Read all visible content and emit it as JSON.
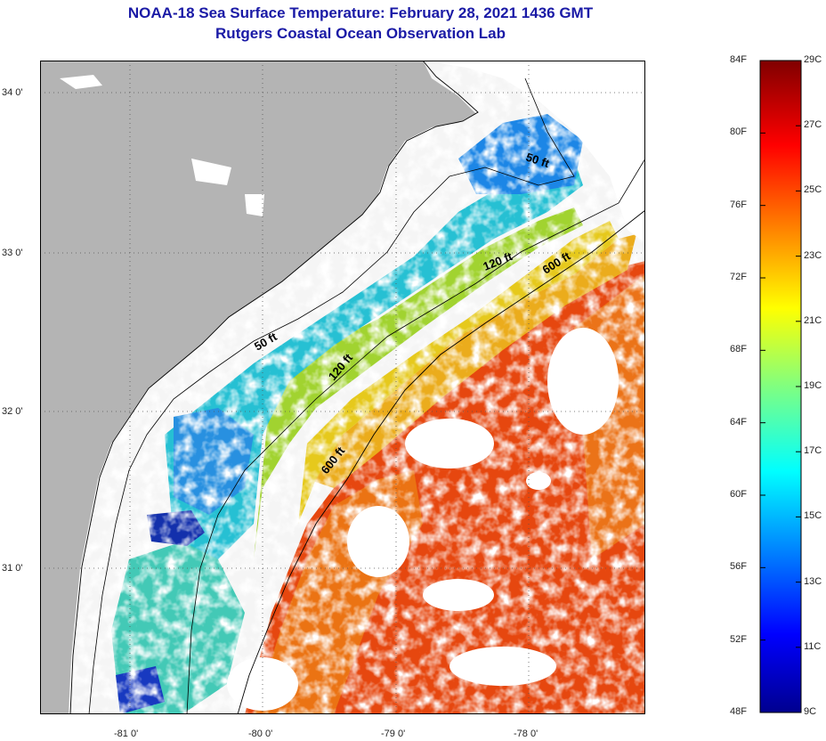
{
  "header": {
    "title": "NOAA-18 Sea Surface Temperature:  February 28, 2021 1436 GMT",
    "subtitle": "Rutgers Coastal Ocean Observation Lab"
  },
  "map": {
    "lat_labels": [
      "34 0'",
      "33 0'",
      "32 0'",
      "31 0'"
    ],
    "lon_labels": [
      "-81 0'",
      "-80 0'",
      "-79 0'",
      "-78 0'"
    ],
    "contour_labels": {
      "c50_north": "50 ft",
      "c120_north": "120 ft",
      "c600_north": "600 ft",
      "c50_mid": "50 ft",
      "c120_mid": "120 ft",
      "c600_south": "600 ft"
    },
    "colors": {
      "land": "#b4b4b4",
      "cloud": "#ffffff",
      "coast": "#000000"
    }
  },
  "colorbar": {
    "fahrenheit_labels": [
      "84F",
      "80F",
      "76F",
      "72F",
      "68F",
      "64F",
      "60F",
      "56F",
      "52F",
      "48F"
    ],
    "celsius_labels": [
      "29C",
      "27C",
      "25C",
      "23C",
      "21C",
      "19C",
      "17C",
      "15C",
      "13C",
      "11C",
      "9C"
    ],
    "range_c": [
      9,
      29
    ]
  }
}
